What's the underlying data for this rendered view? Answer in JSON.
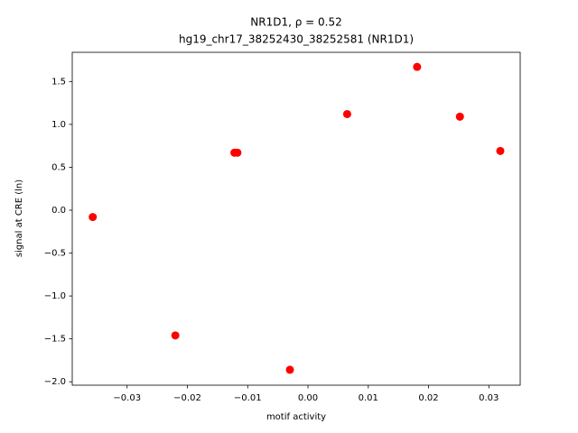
{
  "chart_data": {
    "type": "scatter",
    "title": "NR1D1, ρ = 0.52",
    "subtitle": "hg19_chr17_38252430_38252581 (NR1D1)",
    "x_label": "motif activity",
    "y_label": "signal at CRE (ln)",
    "color": "#ff0000",
    "x": [
      -0.0357,
      -0.022,
      -0.0122,
      -0.0117,
      -0.003,
      0.0065,
      0.0181,
      0.0252,
      0.0319
    ],
    "values": [
      -0.08,
      -1.46,
      0.67,
      0.67,
      -1.86,
      1.12,
      1.67,
      1.09,
      0.69
    ],
    "xlim": [
      -0.0391,
      0.0352
    ],
    "ylim": [
      -2.04,
      1.84
    ],
    "xticks": [
      {
        "value": -0.03,
        "label": "−0.03"
      },
      {
        "value": -0.02,
        "label": "−0.02"
      },
      {
        "value": -0.01,
        "label": "−0.01"
      },
      {
        "value": 0,
        "label": "0.00"
      },
      {
        "value": 0.01,
        "label": "0.01"
      },
      {
        "value": 0.02,
        "label": "0.02"
      },
      {
        "value": 0.03,
        "label": "0.03"
      }
    ],
    "yticks": [
      {
        "value": -2,
        "label": "−2.0"
      },
      {
        "value": -1.5,
        "label": "−1.5"
      },
      {
        "value": -1,
        "label": "−1.0"
      },
      {
        "value": -0.5,
        "label": "−0.5"
      },
      {
        "value": 0,
        "label": "0.0"
      },
      {
        "value": 0.5,
        "label": "0.5"
      },
      {
        "value": 1,
        "label": "1.0"
      },
      1.5
    ],
    "grid": false
  }
}
